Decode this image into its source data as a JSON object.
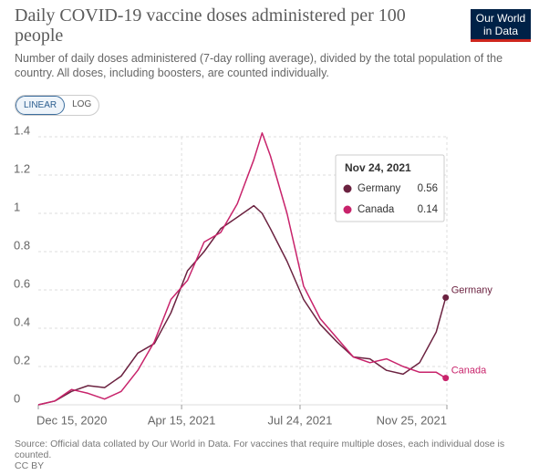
{
  "header": {
    "title": "Daily COVID-19 vaccine doses administered per 100 people",
    "subtitle": "Number of daily doses administered (7-day rolling average), divided by the total population of the country. All doses, including boosters, are counted individually.",
    "logo": [
      "Our World",
      "in Data"
    ],
    "buttons": [
      "LINEAR",
      "LOG"
    ]
  },
  "chart_data": {
    "type": "line",
    "x": [
      "2020-12-15",
      "2020-12-29",
      "2021-01-12",
      "2021-01-26",
      "2021-02-09",
      "2021-02-23",
      "2021-03-09",
      "2021-03-23",
      "2021-04-06",
      "2021-04-20",
      "2021-05-04",
      "2021-05-18",
      "2021-06-01",
      "2021-06-15",
      "2021-06-22",
      "2021-06-29",
      "2021-07-13",
      "2021-07-27",
      "2021-08-10",
      "2021-08-24",
      "2021-09-07",
      "2021-09-21",
      "2021-10-05",
      "2021-10-19",
      "2021-11-02",
      "2021-11-16",
      "2021-11-24"
    ],
    "series": [
      {
        "name": "Germany",
        "color": "#6b2240",
        "values": [
          0,
          0.02,
          0.07,
          0.1,
          0.09,
          0.15,
          0.27,
          0.32,
          0.48,
          0.7,
          0.8,
          0.92,
          0.98,
          1.04,
          1.0,
          0.92,
          0.75,
          0.55,
          0.42,
          0.33,
          0.25,
          0.24,
          0.18,
          0.16,
          0.22,
          0.38,
          0.56
        ]
      },
      {
        "name": "Canada",
        "color": "#c8236b",
        "values": [
          0,
          0.02,
          0.08,
          0.06,
          0.03,
          0.07,
          0.18,
          0.33,
          0.55,
          0.65,
          0.85,
          0.9,
          1.05,
          1.28,
          1.42,
          1.3,
          1.0,
          0.62,
          0.45,
          0.35,
          0.25,
          0.22,
          0.24,
          0.2,
          0.17,
          0.17,
          0.14
        ]
      }
    ],
    "xlim": [
      "2020-12-15",
      "2021-11-25"
    ],
    "xticks": [
      {
        "value": "2020-12-15",
        "label": "Dec 15, 2020"
      },
      {
        "value": "2021-04-15",
        "label": "Apr 15, 2021"
      },
      {
        "value": "2021-07-24",
        "label": "Jul 24, 2021"
      },
      {
        "value": "2021-11-25",
        "label": "Nov 25, 2021"
      }
    ],
    "ylim": [
      0,
      1.4
    ],
    "yticks": [
      0,
      0.2,
      0.4,
      0.6,
      0.8,
      1,
      1.2,
      1.4
    ],
    "grid": true,
    "tooltip": {
      "date": "Nov 24, 2021"
    }
  },
  "footer": {
    "source": "Source: Official data collated by Our World in Data. For vaccines that require multiple doses, each individual dose is counted.",
    "license": "CC BY"
  }
}
